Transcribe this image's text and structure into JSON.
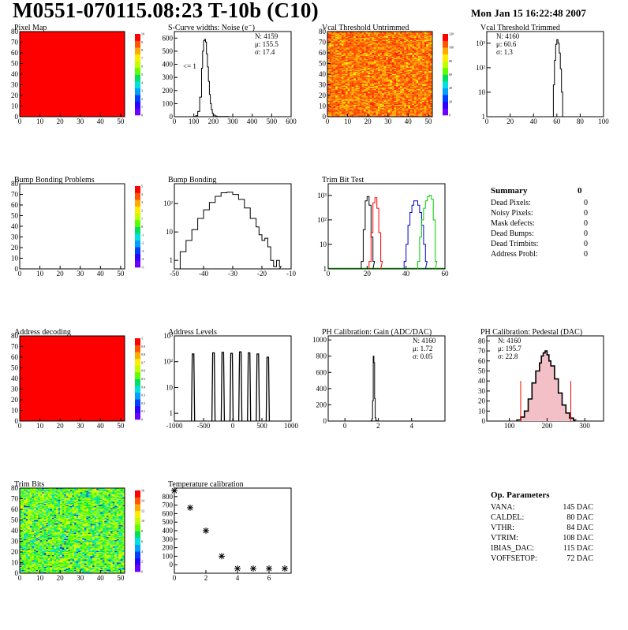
{
  "header": {
    "title": "M0551-070115.08:23 T-10b (C10)",
    "date": "Mon Jan 15 16:22:48 2007"
  },
  "colors": {
    "red": "#ff0000",
    "black": "#000000",
    "green": "#00cc00",
    "blue": "#0000cc",
    "pink": "#e05060"
  },
  "palette": [
    "#6a00ff",
    "#2a00ff",
    "#0040ff",
    "#00a0ff",
    "#00e0e0",
    "#00e060",
    "#60ff00",
    "#c0ff00",
    "#ffee00",
    "#ffaa00",
    "#ff5500",
    "#ff0000"
  ],
  "chart_data": [
    {
      "id": "pixel-map",
      "type": "heatmap",
      "title": "Pixel Map",
      "xlim": [
        0,
        52
      ],
      "ylim": [
        0,
        80
      ],
      "xticks": [
        "0",
        "10",
        "20",
        "30",
        "40",
        "50"
      ],
      "yticks": [
        "0",
        "10",
        "20",
        "30",
        "40",
        "50",
        "60",
        "70",
        "80"
      ],
      "colorbar_ticks": [
        "0",
        "1",
        "2",
        "3",
        "4",
        "5",
        "6",
        "7",
        "8",
        "9",
        "10"
      ],
      "fill": "uniform-red",
      "uniform_value": 10
    },
    {
      "id": "scurve",
      "type": "line",
      "title": "S-Curve widths: Noise (e⁻)",
      "xlim": [
        0,
        600
      ],
      "ylim": [
        0,
        650
      ],
      "xticks": [
        "0",
        "100",
        "200",
        "300",
        "400",
        "500",
        "600"
      ],
      "yticks": [
        "0",
        "100",
        "200",
        "300",
        "400",
        "500",
        "600"
      ],
      "annotation": "<= 1",
      "stats": [
        "N: 4159",
        "μ: 155.5",
        "σ: 17.4"
      ],
      "x": [
        80,
        100,
        110,
        120,
        130,
        140,
        145,
        150,
        155,
        160,
        165,
        170,
        175,
        180,
        185,
        190,
        195,
        200,
        210,
        220,
        230,
        250,
        280
      ],
      "y": [
        0,
        2,
        8,
        40,
        150,
        370,
        500,
        580,
        590,
        570,
        480,
        380,
        270,
        170,
        100,
        55,
        25,
        12,
        5,
        2,
        1,
        1,
        0
      ]
    },
    {
      "id": "vcal-untrimmed",
      "type": "heatmap",
      "title": "Vcal Threshold Untrimmed",
      "xlim": [
        0,
        52
      ],
      "ylim": [
        0,
        80
      ],
      "xticks": [
        "0",
        "10",
        "20",
        "30",
        "40",
        "50"
      ],
      "yticks": [
        "0",
        "10",
        "20",
        "30",
        "40",
        "50",
        "60",
        "70",
        "80"
      ],
      "colorbar_ticks": [
        "0",
        "20",
        "40",
        "60",
        "80",
        "100",
        "120"
      ],
      "fill": "noisy-orange",
      "range": [
        50,
        75
      ]
    },
    {
      "id": "vcal-trimmed",
      "type": "line",
      "title": "Vcal Threshold Trimmed",
      "log_y": true,
      "xlim": [
        0,
        100
      ],
      "ylim": [
        1,
        3000
      ],
      "xticks": [
        "0",
        "20",
        "40",
        "60",
        "80",
        "100"
      ],
      "ytick_labels": [
        "1",
        "10",
        "10²",
        "10³"
      ],
      "stats": [
        "N: 4160",
        "μ: 60.6",
        "σ: 1.3"
      ],
      "x": [
        56,
        57,
        58,
        59,
        60,
        61,
        62,
        63,
        64,
        65
      ],
      "y": [
        1,
        20,
        200,
        900,
        1400,
        1000,
        400,
        90,
        10,
        1
      ]
    },
    {
      "id": "bump-problems",
      "type": "heatmap",
      "title": "Bump Bonding Problems",
      "xlim": [
        0,
        52
      ],
      "ylim": [
        0,
        80
      ],
      "xticks": [
        "0",
        "10",
        "20",
        "30",
        "40",
        "50"
      ],
      "yticks": [
        "0",
        "10",
        "20",
        "30",
        "40",
        "50",
        "60",
        "70",
        "80"
      ],
      "colorbar_ticks": [
        "-5",
        "-4",
        "-3",
        "-2",
        "-1",
        "0",
        "1",
        "2",
        "3",
        "4",
        "5"
      ],
      "fill": "empty"
    },
    {
      "id": "bump-bonding",
      "type": "line",
      "title": "Bump Bonding",
      "log_y": true,
      "xlim": [
        -50,
        -10
      ],
      "ylim": [
        0.5,
        500
      ],
      "xticks": [
        "-50",
        "-40",
        "-30",
        "-20",
        "-10"
      ],
      "ytick_labels": [
        "1",
        "10",
        "10²"
      ],
      "x": [
        -48,
        -46,
        -44,
        -42,
        -40,
        -38,
        -36,
        -34,
        -32,
        -30,
        -28,
        -26,
        -24,
        -22,
        -21,
        -20,
        -19,
        -18,
        -17,
        -16,
        -15,
        -14
      ],
      "y": [
        2,
        5,
        12,
        30,
        60,
        110,
        180,
        240,
        250,
        210,
        140,
        70,
        30,
        15,
        8,
        5,
        6,
        3,
        1,
        0.6,
        1,
        0.6
      ]
    },
    {
      "id": "trim-bit-test",
      "type": "line",
      "title": "Trim Bit Test",
      "log_y": true,
      "xlim": [
        0,
        60
      ],
      "ylim": [
        1,
        3000
      ],
      "xticks": [
        "0",
        "20",
        "40",
        "60"
      ],
      "ytick_labels": [
        "1",
        "10",
        "10²",
        "10³"
      ],
      "series": [
        {
          "color": "black",
          "x": [
            17,
            18,
            19,
            20,
            21,
            22,
            23
          ],
          "y": [
            2,
            40,
            600,
            900,
            400,
            20,
            2
          ]
        },
        {
          "color": "red",
          "x": [
            21,
            22,
            23,
            24,
            25,
            26,
            27
          ],
          "y": [
            2,
            30,
            500,
            800,
            300,
            30,
            2
          ]
        },
        {
          "color": "blue",
          "x": [
            39,
            40,
            41,
            42,
            43,
            44,
            45,
            46,
            47,
            48,
            49,
            50
          ],
          "y": [
            2,
            10,
            60,
            200,
            400,
            600,
            600,
            400,
            200,
            60,
            10,
            2
          ]
        },
        {
          "color": "green",
          "x": [
            46,
            47,
            48,
            49,
            50,
            51,
            52,
            53,
            54,
            55
          ],
          "y": [
            2,
            20,
            100,
            300,
            600,
            900,
            1000,
            700,
            100,
            2
          ]
        }
      ]
    },
    {
      "id": "address-decoding",
      "type": "heatmap",
      "title": "Address decoding",
      "xlim": [
        0,
        52
      ],
      "ylim": [
        0,
        80
      ],
      "xticks": [
        "0",
        "10",
        "20",
        "30",
        "40",
        "50"
      ],
      "yticks": [
        "0",
        "10",
        "20",
        "30",
        "40",
        "50",
        "60",
        "70",
        "80"
      ],
      "colorbar_ticks": [
        "0",
        "0.1",
        "0.2",
        "0.3",
        "0.4",
        "0.5",
        "0.6",
        "0.7",
        "0.8",
        "0.9",
        "1"
      ],
      "fill": "uniform-red",
      "uniform_value": 1
    },
    {
      "id": "address-levels",
      "type": "line",
      "title": "Address Levels",
      "log_y": true,
      "xlim": [
        -1000,
        1000
      ],
      "ylim": [
        0.5,
        1000
      ],
      "xticks": [
        "-1000",
        "-500",
        "0",
        "500",
        "1000"
      ],
      "ytick_labels": [
        "1",
        "10",
        "10²",
        "10³"
      ],
      "peaks": [
        {
          "x": -680,
          "h": 200
        },
        {
          "x": -330,
          "h": 220
        },
        {
          "x": -170,
          "h": 230
        },
        {
          "x": -20,
          "h": 210
        },
        {
          "x": 130,
          "h": 240
        },
        {
          "x": 280,
          "h": 220
        },
        {
          "x": 430,
          "h": 200
        },
        {
          "x": 600,
          "h": 150
        }
      ]
    },
    {
      "id": "ph-gain",
      "type": "line",
      "title": "PH Calibration: Gain (ADC/DAC)",
      "xlim": [
        -1,
        6
      ],
      "ylim": [
        0,
        1050
      ],
      "xticks": [
        "0",
        "2",
        "4"
      ],
      "yticks": [
        "0",
        "200",
        "400",
        "600",
        "800",
        "1000"
      ],
      "stats": [
        "N: 4160",
        "μ: 1.72",
        "σ: 0.05"
      ],
      "x": [
        1.5,
        1.58,
        1.62,
        1.66,
        1.7,
        1.74,
        1.78,
        1.82,
        1.86,
        1.9,
        1.96
      ],
      "y": [
        0,
        5,
        30,
        250,
        800,
        720,
        280,
        40,
        8,
        2,
        0
      ]
    },
    {
      "id": "ph-pedestal",
      "type": "line",
      "title": "PH Calibration: Pedestal (DAC)",
      "xlim": [
        40,
        350
      ],
      "ylim": [
        0,
        85
      ],
      "xticks": [
        "100",
        "200",
        "300"
      ],
      "yticks": [
        "0",
        "10",
        "20",
        "30",
        "40",
        "50",
        "60",
        "70",
        "80"
      ],
      "stats": [
        "N: 4160",
        "μ: 195.7",
        "σ: 22.8"
      ],
      "cut_lines": [
        130,
        263
      ],
      "x": [
        120,
        130,
        140,
        150,
        160,
        170,
        180,
        185,
        190,
        195,
        200,
        205,
        210,
        220,
        230,
        240,
        250,
        260,
        270
      ],
      "y": [
        1,
        4,
        10,
        22,
        38,
        50,
        58,
        65,
        68,
        70,
        66,
        60,
        55,
        42,
        28,
        16,
        8,
        3,
        1
      ]
    },
    {
      "id": "trim-bits",
      "type": "heatmap",
      "title": "Trim Bits",
      "xlim": [
        0,
        52
      ],
      "ylim": [
        0,
        80
      ],
      "xticks": [
        "0",
        "10",
        "20",
        "30",
        "40",
        "50"
      ],
      "yticks": [
        "0",
        "10",
        "20",
        "30",
        "40",
        "50",
        "60",
        "70",
        "80"
      ],
      "colorbar_ticks": [
        "0",
        "2",
        "4",
        "6",
        "8",
        "10",
        "12",
        "14",
        "16"
      ],
      "fill": "noisy-green",
      "range": [
        4,
        10
      ]
    },
    {
      "id": "temperature",
      "type": "scatter",
      "title": "Temperature calibration",
      "xlim": [
        0,
        7.4
      ],
      "ylim": [
        -100,
        900
      ],
      "xticks": [
        "0",
        "2",
        "4",
        "6"
      ],
      "yticks": [
        "0",
        "100",
        "200",
        "300",
        "400",
        "500",
        "600",
        "700",
        "800"
      ],
      "x": [
        0,
        1,
        2,
        3,
        4,
        5,
        6,
        7
      ],
      "y": [
        870,
        670,
        400,
        100,
        -45,
        -45,
        -45,
        -45
      ]
    }
  ],
  "summary": {
    "title": "Summary",
    "total": "0",
    "rows": [
      {
        "label": "Dead Pixels:",
        "value": "0"
      },
      {
        "label": "Noisy Pixels:",
        "value": "0"
      },
      {
        "label": "Mask defects:",
        "value": "0"
      },
      {
        "label": "Dead Bumps:",
        "value": "0"
      },
      {
        "label": "Dead Trimbits:",
        "value": "0"
      },
      {
        "label": "Address Probl:",
        "value": "0"
      }
    ]
  },
  "op_params": {
    "title": "Op. Parameters",
    "rows": [
      {
        "label": "VANA:",
        "value": "145 DAC"
      },
      {
        "label": "CALDEL:",
        "value": "80 DAC"
      },
      {
        "label": "VTHR:",
        "value": "84 DAC"
      },
      {
        "label": "VTRIM:",
        "value": "108 DAC"
      },
      {
        "label": "IBIAS_DAC:",
        "value": "115 DAC"
      },
      {
        "label": "VOFFSETOP:",
        "value": "72 DAC"
      }
    ]
  }
}
